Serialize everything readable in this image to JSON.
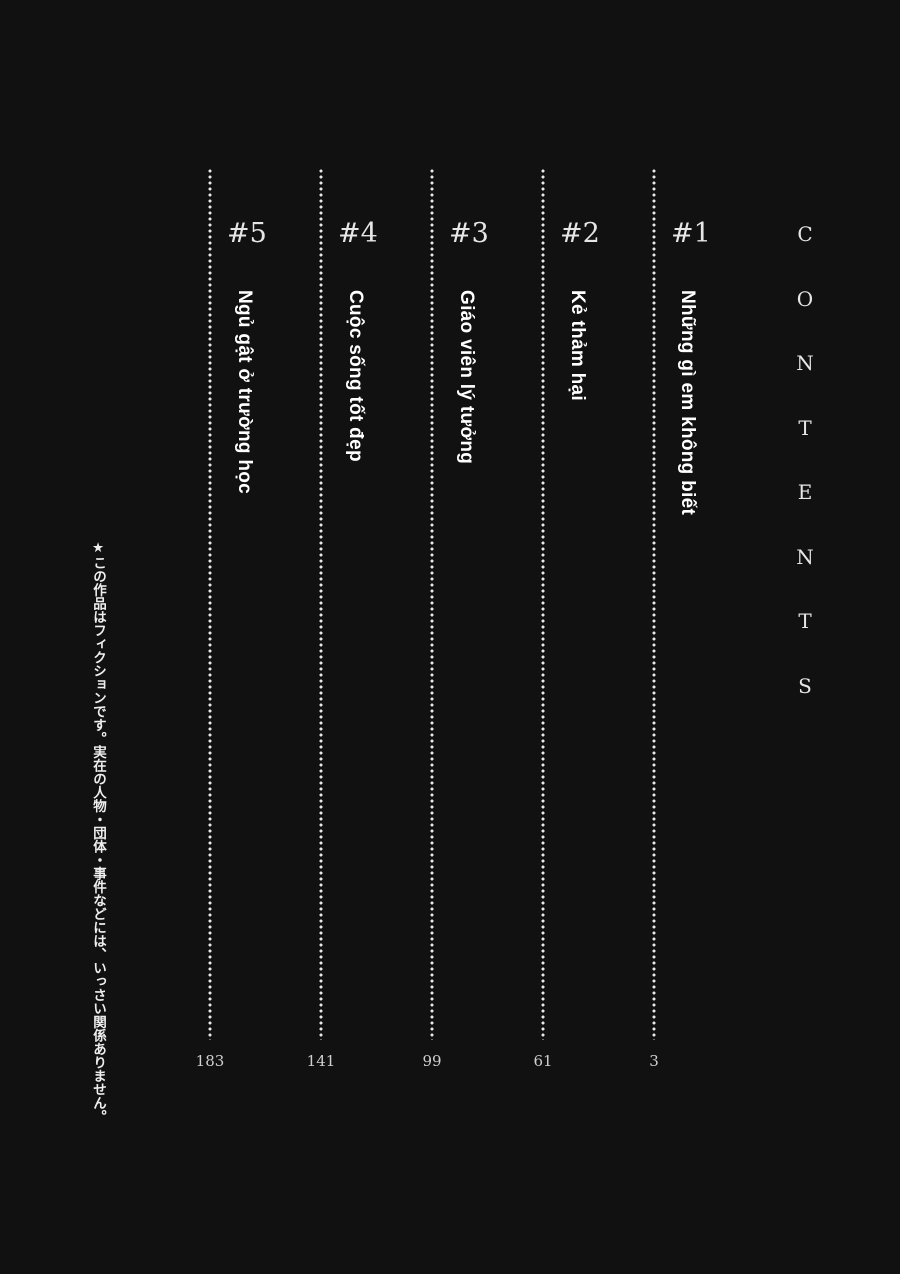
{
  "heading": [
    "C",
    "O",
    "N",
    "T",
    "E",
    "N",
    "T",
    "S"
  ],
  "chapters": [
    {
      "number": "#1",
      "title": "Những gì em không biết",
      "page": "3"
    },
    {
      "number": "#2",
      "title": "Kẻ thảm hại",
      "page": "61"
    },
    {
      "number": "#3",
      "title": "Giáo viên lý tưởng",
      "page": "99"
    },
    {
      "number": "#4",
      "title": "Cuộc sống tốt đẹp",
      "page": "141"
    },
    {
      "number": "#5",
      "title": "Ngủ gật ở trường học",
      "page": "183"
    }
  ],
  "disclaimer": "★この作品はフィクションです。実在の人物・団体・事件などには、いっさい関係ありません。"
}
